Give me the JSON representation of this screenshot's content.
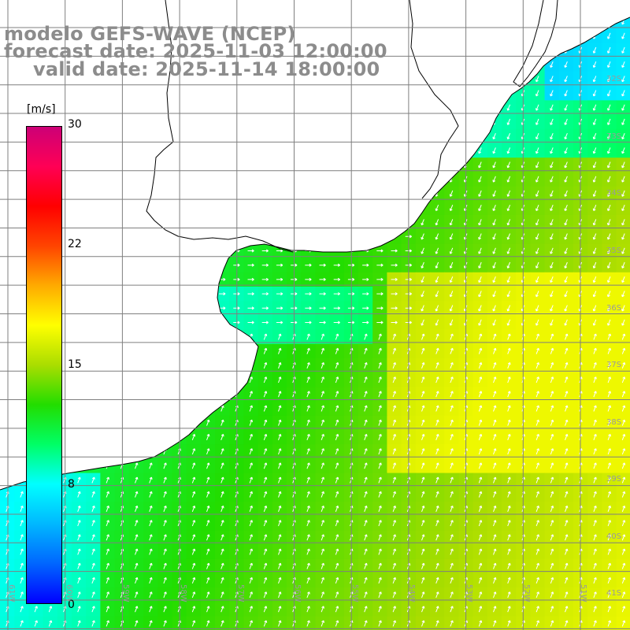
{
  "title": {
    "model": "modelo GEFS-WAVE (NCEP)",
    "forecast": "forecast date: 2025-11-03 12:00:00",
    "valid": "valid date: 2025-11-14 18:00:00"
  },
  "colorbar": {
    "unit": "[m/s]",
    "ticks": [
      {
        "label": "30",
        "value": 30
      },
      {
        "label": "22",
        "value": 22
      },
      {
        "label": "15",
        "value": 15
      },
      {
        "label": "8",
        "value": 8
      },
      {
        "label": "0",
        "value": 0
      }
    ],
    "colors": [
      "#0000ff",
      "#0066ff",
      "#00b8ff",
      "#00ffff",
      "#00ff66",
      "#22dd00",
      "#aadd00",
      "#ffff00",
      "#ffaa00",
      "#ff4400",
      "#ff0000",
      "#ff0055",
      "#cc0077"
    ]
  },
  "map": {
    "lat_labels": [
      "32S",
      "33S",
      "34S",
      "35S",
      "36S",
      "37S",
      "38S",
      "39S",
      "40S",
      "41S"
    ],
    "lon_labels": [
      "61W",
      "60W",
      "59W",
      "58W",
      "57W",
      "56W",
      "55W",
      "54W",
      "53W",
      "52W",
      "51W"
    ],
    "land_color": "#ffffff",
    "grid_color": "#7f7f7f"
  }
}
